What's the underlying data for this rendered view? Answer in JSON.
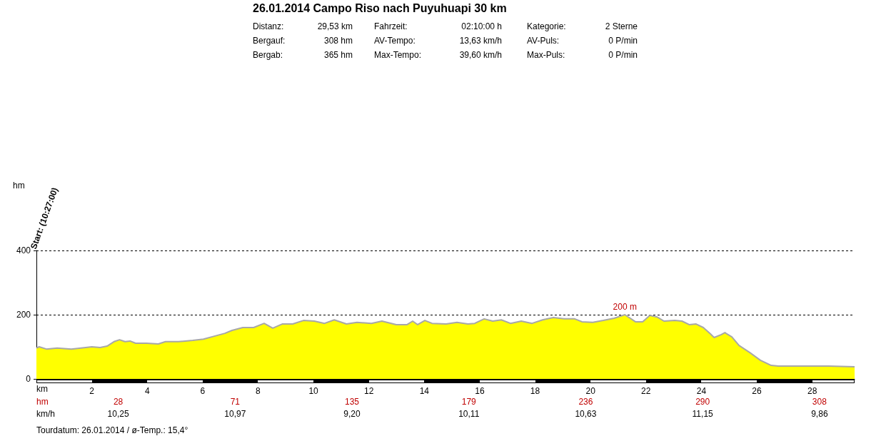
{
  "chart_data": {
    "type": "area",
    "title": "26.01.2014 Campo Riso nach Puyuhuapi 30 km",
    "subtitle": "Distanz:\t29,53 km\tFahrzeit:\t02:10:00 h\tKategorie:\t2 Sterne\nBergauf:\t308 hm\tAV-Tempo:\t13,63 km/h\tAV-Puls:\t0 P/min\nBergab:\t365 hm\tMax-Tempo:\t39,60 km/h\tMax-Puls:\t0 P/min",
    "xlabel": "km",
    "x": [
      0,
      0.1,
      0.36,
      0.75,
      1.26,
      1.78,
      2.0,
      2.3,
      2.55,
      2.8,
      3.0,
      3.2,
      3.38,
      3.58,
      3.97,
      4.4,
      4.66,
      5.13,
      5.64,
      6.03,
      6.42,
      6.8,
      7.06,
      7.45,
      7.84,
      8.22,
      8.53,
      8.87,
      9.25,
      9.64,
      10.03,
      10.4,
      10.75,
      11.19,
      11.57,
      12.09,
      12.47,
      12.99,
      13.38,
      13.58,
      13.76,
      14.02,
      14.28,
      14.79,
      15.18,
      15.57,
      15.82,
      16.16,
      16.47,
      16.78,
      17.11,
      17.5,
      17.89,
      18.27,
      18.66,
      19.05,
      19.43,
      19.69,
      20.08,
      20.46,
      20.85,
      21.24,
      21.62,
      21.88,
      22.14,
      22.4,
      22.65,
      23.04,
      23.3,
      23.56,
      23.81,
      24.07,
      24.33,
      24.46,
      24.72,
      24.85,
      25.1,
      25.36,
      25.75,
      26.13,
      26.52,
      26.78,
      27.8,
      28.58,
      29.53
    ],
    "series": [
      {
        "color": "#ffff00",
        "values": [
          96,
          100,
          93,
          96,
          93,
          98,
          100,
          98,
          102,
          116,
          122,
          116,
          118,
          111,
          111,
          109,
          116,
          116,
          120,
          124,
          133,
          142,
          151,
          160,
          160,
          173,
          158,
          171,
          171,
          182,
          180,
          173,
          184,
          171,
          176,
          173,
          180,
          169,
          169,
          180,
          169,
          182,
          173,
          171,
          176,
          171,
          173,
          187,
          180,
          184,
          173,
          180,
          173,
          184,
          191,
          187,
          187,
          178,
          176,
          182,
          189,
          200,
          178,
          178,
          198,
          193,
          180,
          182,
          180,
          169,
          171,
          160,
          140,
          129,
          138,
          144,
          131,
          104,
          82,
          58,
          42,
          40,
          40,
          40,
          38
        ]
      }
    ],
    "xlim": [
      0,
      29.53
    ],
    "xticks": [
      2,
      4,
      6,
      8,
      10,
      12,
      14,
      16,
      18,
      20,
      22,
      24,
      26,
      28
    ],
    "ylim": [
      0,
      400
    ],
    "yticks": [
      0,
      200,
      400
    ],
    "grid": "y",
    "line_style": "solid",
    "marker": "none",
    "annotations": [
      {
        "text": "200 m",
        "x": 21.24,
        "y": 200
      },
      "Start: (10:27:00)",
      "hm",
      "hm\t28\t71\t135\t179\t236\t290\t308",
      "km/h\t10,25\t10,97\t9,20\t10,11\t10,63\t11,15\t9,86",
      "Tourdatum: 26.01.2014  /  ø-Temp.: 15,4°"
    ]
  }
}
